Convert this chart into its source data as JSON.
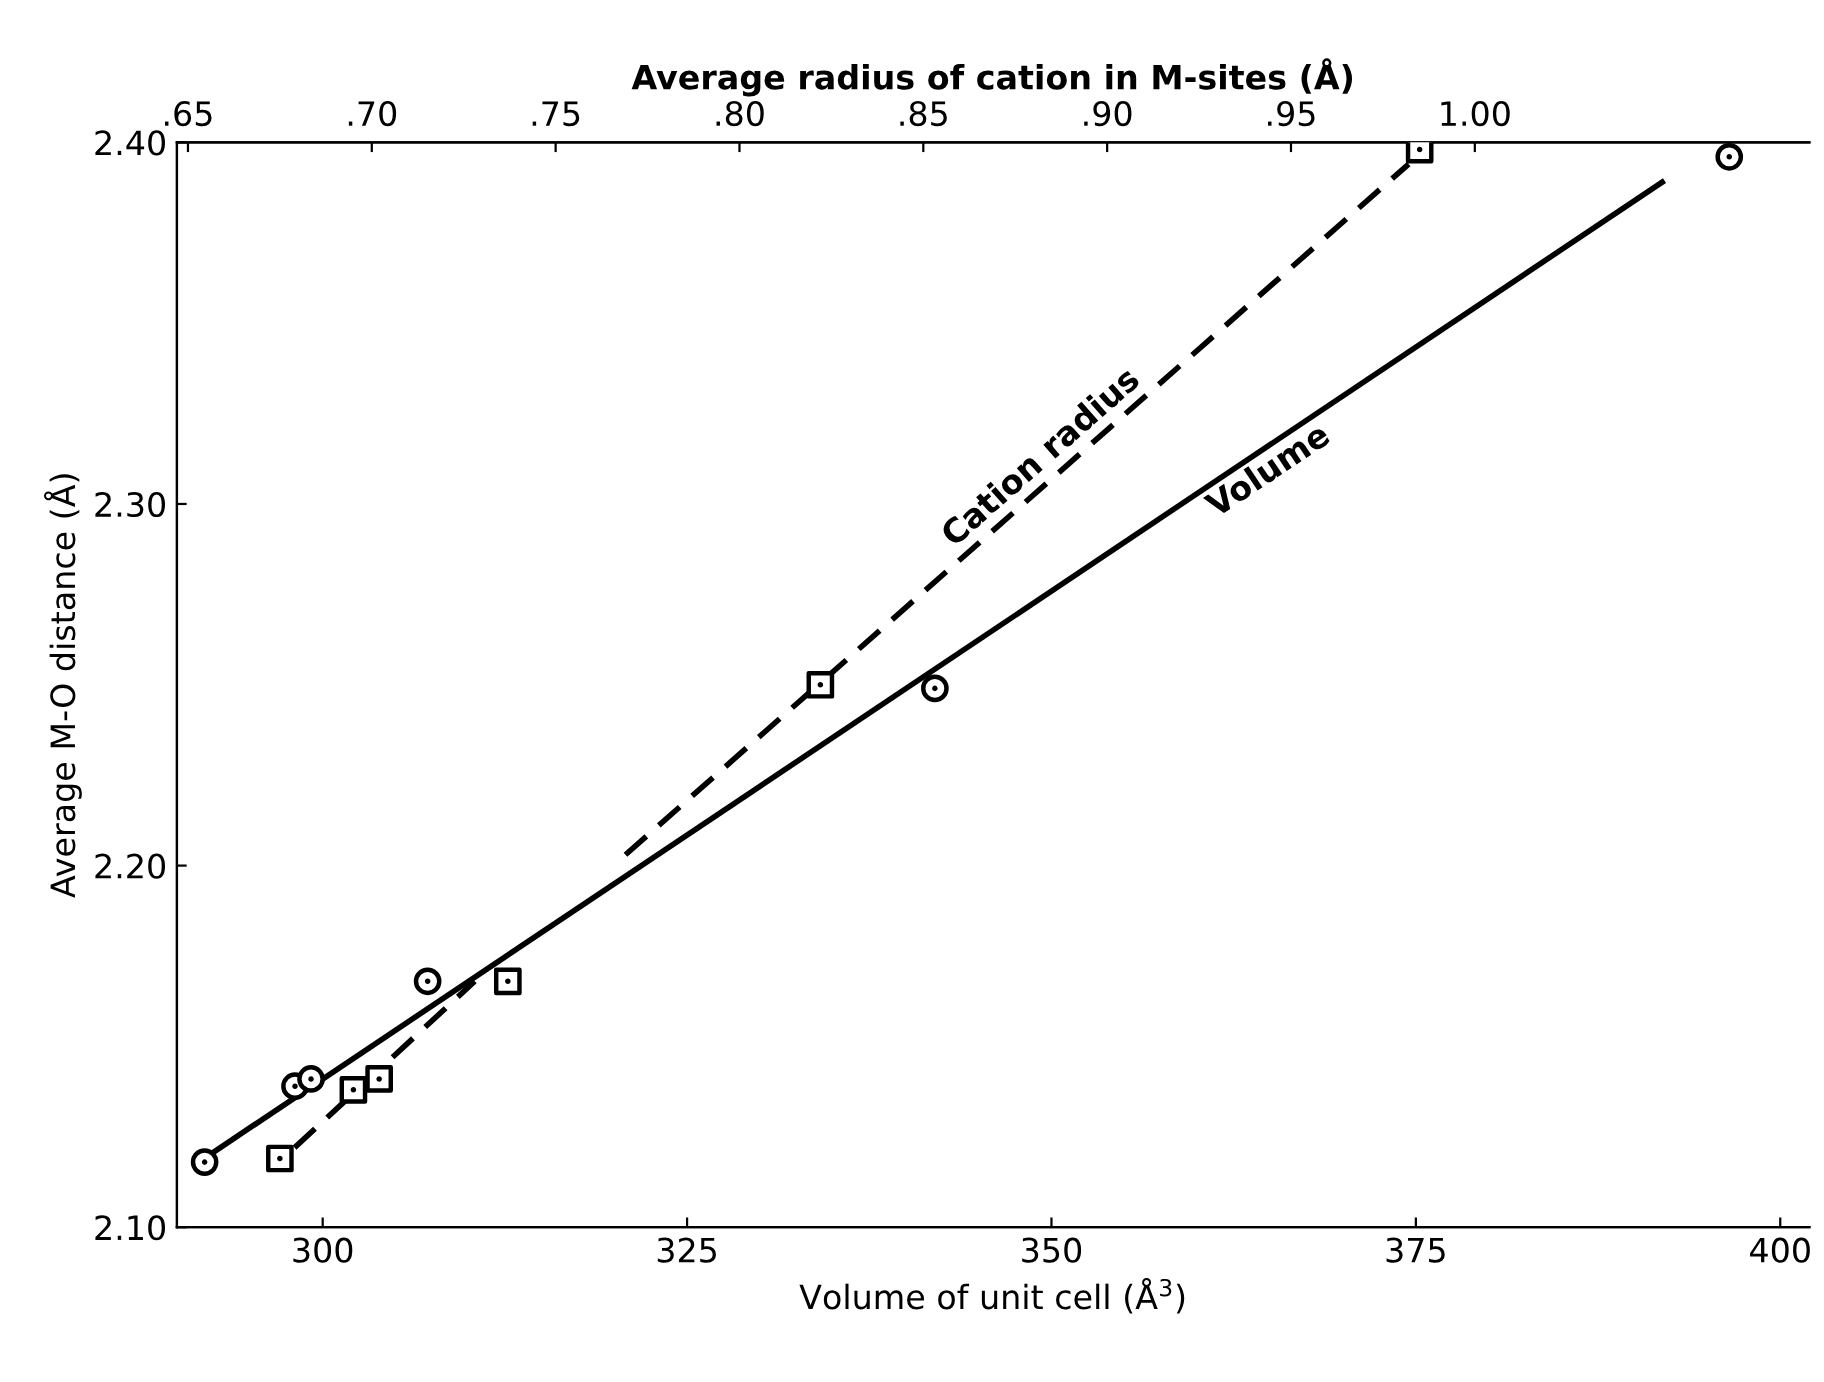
{
  "chart_data": {
    "type": "scatter",
    "xlabel": "Volume of unit cell (Å$^{3}$)",
    "ylabel": "Average M-O distance (Å)",
    "x2label": "Average radius of cation in M-sites (Å)",
    "xlim": [
      290,
      402
    ],
    "xticks": [
      300,
      325,
      350,
      375,
      400
    ],
    "x2lim": [
      0.647,
      1.091
    ],
    "x2ticks": [
      {
        "value": 0.65,
        "label": ".65"
      },
      {
        "value": 0.7,
        "label": ".70"
      },
      {
        "value": 0.75,
        "label": ".75"
      },
      {
        "value": 0.8,
        "label": ".80"
      },
      {
        "value": 0.85,
        "label": ".85"
      },
      {
        "value": 0.9,
        "label": ".90"
      },
      {
        "value": 0.95,
        "label": ".95"
      },
      {
        "value": 1.0,
        "label": "1.00"
      }
    ],
    "ylim": [
      2.1,
      2.4
    ],
    "yticks": [
      {
        "value": 2.1,
        "label": "2.10"
      },
      {
        "value": 2.2,
        "label": "2.20"
      },
      {
        "value": 2.3,
        "label": "2.30"
      },
      {
        "value": 2.4,
        "label": "2.40"
      }
    ],
    "grid": false,
    "series": [
      {
        "marker": "circle",
        "color": "#000000",
        "x": [
          291.9,
          298.1,
          299.2,
          307.2,
          342.0,
          396.5
        ],
        "values": [
          2.118,
          2.139,
          2.141,
          2.168,
          2.249,
          2.396
        ]
      },
      {
        "marker": "square",
        "axis": "x2",
        "color": "#000000",
        "x": [
          0.675,
          0.695,
          0.702,
          0.737,
          0.822,
          0.985
        ],
        "values": [
          2.119,
          2.138,
          2.141,
          2.168,
          2.25,
          2.398
        ]
      },
      {
        "type": "line",
        "name": "Volume",
        "line_style": "solid",
        "color": "#000000",
        "x": [
          292.6,
          391.9
        ],
        "values": [
          2.121,
          2.389
        ]
      },
      {
        "type": "line",
        "name": "Cation radius",
        "line_style": "dashed",
        "axis": "x2",
        "color": "#000000",
        "x": [
          0.679,
          0.728,
          0.748,
          0.769,
          0.982
        ],
        "values": [
          2.122,
          2.168,
          null,
          2.203,
          2.394
        ]
      }
    ]
  }
}
